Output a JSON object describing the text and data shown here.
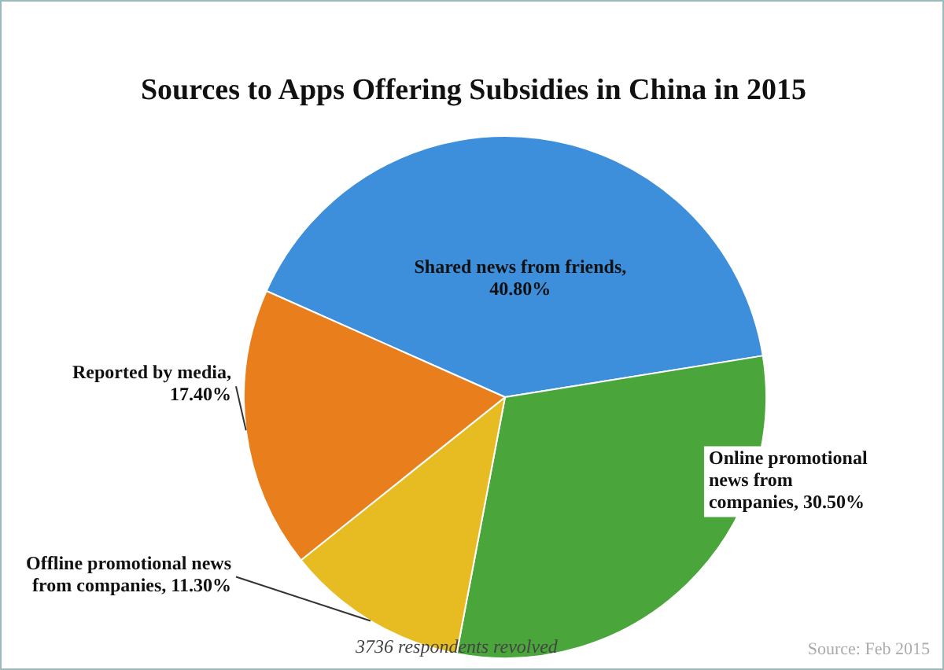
{
  "chart_data": {
    "type": "pie",
    "title": "Sources to Apps Offering Subsidies in China in 2015",
    "categories": [
      "Shared news from friends",
      "Online promotional news from companies",
      "Offline promotional news from companies",
      "Reported by media"
    ],
    "values": [
      40.8,
      30.5,
      11.3,
      17.4
    ],
    "value_labels": [
      ", 40.80%",
      ", 30.50%",
      ", 11.30%",
      ", 17.40%"
    ],
    "colors": [
      "#3d8fdc",
      "#4aa63a",
      "#e6bc22",
      "#e97f1c"
    ],
    "legend": false,
    "annotations": [
      "3736 respondents revolved",
      "Source: Feb 2015"
    ]
  }
}
